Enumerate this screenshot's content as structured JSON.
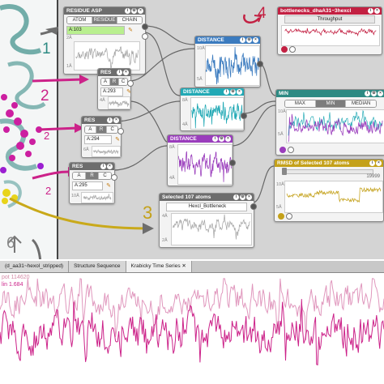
{
  "colors": {
    "accent_magenta": "#cc2289",
    "accent_olive": "#b8a516",
    "accent_gray": "#6d6d6d",
    "accent_teal": "#2d8a83",
    "accent_blue": "#3b7bbf",
    "accent_purple": "#9a3dbc",
    "accent_red": "#c32042",
    "accent_cyan": "#22a9b5",
    "accent_gold": "#c4a11a"
  },
  "annotations": {
    "n1": "1",
    "n2a": "2",
    "n2b": "2",
    "n2c": "2",
    "n3": "3",
    "n4": "4",
    "n6": "6"
  },
  "residue_asp": {
    "title": "RESIDUE ASP",
    "tabs": [
      "ATOM",
      "RESIDUE",
      "CHAIN"
    ],
    "selected_tab": 1,
    "value": "A:103",
    "y_top": "2Å",
    "y_bottom": "1Å"
  },
  "res1": {
    "title": "RES",
    "tabs": [
      "A",
      "R",
      "C"
    ],
    "selected_tab": 1,
    "value": "A:293",
    "y_top": "4Å",
    "y_bottom": "2Å"
  },
  "res2": {
    "title": "RES",
    "tabs": [
      "A",
      "R",
      "C"
    ],
    "selected_tab": 1,
    "value": "A:294",
    "y_top": "6Å",
    "y_bottom": "3Å"
  },
  "res3": {
    "title": "RES",
    "tabs": [
      "A",
      "R",
      "C"
    ],
    "selected_tab": 1,
    "value": "A:295",
    "y_top": "10Å",
    "y_bottom": "5Å"
  },
  "distance1": {
    "title": "DISTANCE",
    "y_top": "10Å",
    "y_bottom": "5Å"
  },
  "distance2": {
    "title": "DISTANCE",
    "y_top": "8Å",
    "y_bottom": "4Å"
  },
  "distance3": {
    "title": "DISTANCE",
    "y_top": "8Å",
    "y_bottom": "4Å"
  },
  "min_node": {
    "title": "MIN",
    "tabs": [
      "MAX",
      "MIN",
      "MEDIAN"
    ],
    "selected_tab": 1,
    "y_top": "10Å",
    "y_bottom": "5Å"
  },
  "bottleneck": {
    "title": "bottlenecks_dhaA31~3hexcl",
    "subtitle": "Throughput"
  },
  "rmsd": {
    "title": "RMSD of Selected 107 atoms",
    "slider_value": "19999",
    "y_top": "10Å",
    "y_bottom": "5Å"
  },
  "selected_atoms": {
    "title": "Selected 107 atoms",
    "field": "Hexcl_Bottleneck",
    "y_top": "4Å",
    "y_bottom": "2Å"
  },
  "tabs": [
    {
      "label": "(d_aa31~hexol_stripped)",
      "active": false
    },
    {
      "label": "Structure Sequence",
      "active": false
    },
    {
      "label": "Krabicky Time Series",
      "active": true
    }
  ],
  "viewer": {
    "label1": "pot 114620",
    "label2": "lin 1.684"
  }
}
